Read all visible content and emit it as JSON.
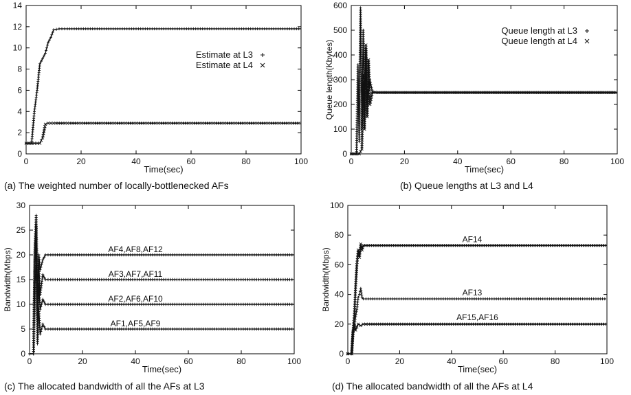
{
  "chart_data": [
    {
      "id": "a",
      "type": "line",
      "caption": "(a) The weighted number of locally-bottlenecked AFs",
      "xlabel": "Time(sec)",
      "ylabel": "",
      "xlim": [
        0,
        100
      ],
      "ylim": [
        0,
        14
      ],
      "xticks": [
        0,
        20,
        40,
        60,
        80,
        100
      ],
      "yticks": [
        0,
        2,
        4,
        6,
        8,
        10,
        12,
        14
      ],
      "legend_position": "center-right",
      "series": [
        {
          "name": "Estimate at L3",
          "marker": "+",
          "x": [
            0,
            2,
            3,
            4,
            5,
            6,
            7,
            8,
            9,
            10,
            12,
            15,
            20,
            30,
            40,
            50,
            60,
            70,
            80,
            90,
            100
          ],
          "values": [
            1,
            1,
            4,
            6,
            8.5,
            9,
            9.5,
            10.5,
            11,
            11.7,
            11.8,
            11.8,
            11.8,
            11.8,
            11.8,
            11.8,
            11.8,
            11.8,
            11.8,
            11.8,
            11.8
          ]
        },
        {
          "name": "Estimate at L4",
          "marker": "x",
          "x": [
            0,
            2,
            4,
            5,
            6,
            7,
            8,
            10,
            20,
            40,
            60,
            80,
            100
          ],
          "values": [
            1,
            1,
            1,
            1,
            1.5,
            2.8,
            2.9,
            2.9,
            2.9,
            2.9,
            2.9,
            2.9,
            2.9
          ]
        }
      ]
    },
    {
      "id": "b",
      "type": "line",
      "caption": "(b) Queue lengths at L3 and L4",
      "xlabel": "Time(sec)",
      "ylabel": "Queue length(Kbytes)",
      "xlim": [
        0,
        100
      ],
      "ylim": [
        0,
        600
      ],
      "xticks": [
        0,
        20,
        40,
        60,
        80,
        100
      ],
      "yticks": [
        0,
        100,
        200,
        300,
        400,
        500,
        600
      ],
      "legend_position": "top-right",
      "series": [
        {
          "name": "Queue length at L3",
          "marker": "+",
          "x": [
            0,
            2,
            2.5,
            3,
            3.5,
            4,
            4.5,
            5,
            5.5,
            6,
            7,
            8,
            10,
            20,
            40,
            60,
            80,
            100
          ],
          "values": [
            0,
            0,
            360,
            50,
            590,
            100,
            500,
            180,
            420,
            200,
            300,
            248,
            248,
            248,
            248,
            248,
            248,
            248
          ]
        },
        {
          "name": "Queue length at L4",
          "marker": "x",
          "x": [
            0,
            3,
            4,
            4.5,
            5,
            5.5,
            6,
            6.5,
            7,
            8,
            10,
            20,
            40,
            60,
            80,
            100
          ],
          "values": [
            0,
            0,
            20,
            320,
            100,
            440,
            150,
            380,
            200,
            250,
            248,
            248,
            248,
            248,
            248,
            248
          ]
        }
      ]
    },
    {
      "id": "c",
      "type": "line",
      "caption": "(c) The allocated bandwidth of all the AFs at L3",
      "xlabel": "Time(sec)",
      "ylabel": "Bandwidth(Mbps)",
      "xlim": [
        0,
        100
      ],
      "ylim": [
        0,
        30
      ],
      "xticks": [
        0,
        20,
        40,
        60,
        80,
        100
      ],
      "yticks": [
        0,
        5,
        10,
        15,
        20,
        25,
        30
      ],
      "series": [
        {
          "label": "AF4,AF8,AF12",
          "x": [
            0,
            1.5,
            2,
            2.5,
            3,
            3.5,
            4,
            5,
            6,
            8,
            100
          ],
          "values": [
            0,
            0,
            22,
            28,
            12,
            20,
            17,
            19,
            20,
            20,
            20
          ]
        },
        {
          "label": "AF3,AF7,AF11",
          "x": [
            0,
            1.5,
            2,
            2.5,
            3,
            3.5,
            4,
            5,
            6,
            8,
            100
          ],
          "values": [
            0,
            0,
            20,
            26,
            8,
            18,
            12,
            16,
            15,
            15,
            15
          ]
        },
        {
          "label": "AF2,AF6,AF10",
          "x": [
            0,
            1.5,
            2,
            2.5,
            3,
            3.5,
            4,
            5,
            6,
            8,
            100
          ],
          "values": [
            0,
            0,
            18,
            22,
            6,
            14,
            9,
            11,
            10,
            10,
            10
          ]
        },
        {
          "label": "AF1,AF5,AF9",
          "x": [
            0,
            1.5,
            2,
            2.5,
            3,
            3.5,
            4,
            5,
            6,
            8,
            100
          ],
          "values": [
            0,
            0,
            14,
            18,
            2,
            9,
            4,
            6,
            5,
            5,
            5
          ]
        }
      ]
    },
    {
      "id": "d",
      "type": "line",
      "caption": "(d) The allocated bandwidth of all the AFs at L4",
      "xlabel": "Time(sec)",
      "ylabel": "Bandwidth(Mbps)",
      "xlim": [
        0,
        100
      ],
      "ylim": [
        0,
        100
      ],
      "xticks": [
        0,
        20,
        40,
        60,
        80,
        100
      ],
      "yticks": [
        0,
        20,
        40,
        60,
        80,
        100
      ],
      "series": [
        {
          "label": "AF14",
          "marker": "x",
          "x": [
            0,
            1.5,
            2,
            2.5,
            3,
            3.5,
            4,
            4.5,
            5,
            5.5,
            6,
            7,
            100
          ],
          "values": [
            0,
            0,
            15,
            25,
            45,
            60,
            70,
            65,
            74,
            70,
            73,
            73,
            73
          ]
        },
        {
          "label": "AF13",
          "marker": "+",
          "x": [
            0,
            1.5,
            2,
            2.5,
            3,
            3.5,
            4,
            4.5,
            5,
            5.5,
            6,
            7,
            100
          ],
          "values": [
            0,
            0,
            15,
            18,
            25,
            30,
            38,
            40,
            44,
            38,
            37,
            37,
            37
          ]
        },
        {
          "label": "AF15,AF16",
          "marker": "x",
          "x": [
            0,
            1.5,
            2,
            2.5,
            3,
            4,
            5,
            6,
            8,
            100
          ],
          "values": [
            0,
            0,
            14,
            20,
            16,
            20,
            19,
            20,
            20,
            20
          ]
        }
      ]
    }
  ]
}
